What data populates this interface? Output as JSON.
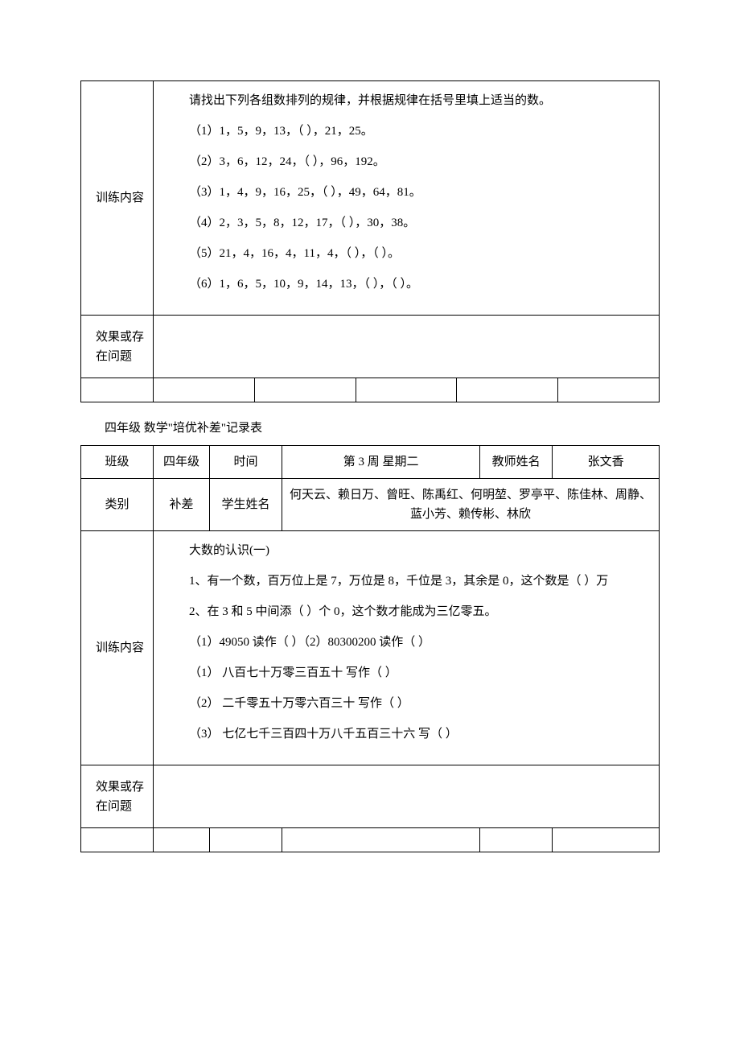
{
  "table1": {
    "row_label_training": "训练内容",
    "row_label_feedback": "效果或存在问题",
    "content_intro": "请找出下列各组数排列的规律，并根据规律在括号里填上适当的数。",
    "items": [
      "（1）1，5，9，13，（ ），21，25。",
      "（2）3，6，12，24，（ ），96，192。",
      "（3）1，4，9，16，25，（ ），49，64，81。",
      "（4）2，3，5，8，12，17，（ ），30，38。",
      "（5）21，4，16，4，11，4，（ ），（ ）。",
      "（6）1，6，5，10，9，14，13，（ ），（ ）。"
    ]
  },
  "between_title": "四年级 数学\"培优补差\"记录表",
  "table2": {
    "headers": {
      "class_label": "班级",
      "class_value": "四年级",
      "time_label": "时间",
      "time_value": "第 3 周 星期二",
      "teacher_label": "教师姓名",
      "teacher_value": "张文香",
      "category_label": "类别",
      "category_value": "补差",
      "student_label": "学生姓名",
      "student_value": "何天云、赖日万、曾旺、陈禹红、何明堃、罗亭平、陈佳林、周静、蓝小芳、赖传彬、林欣"
    },
    "row_label_training": "训练内容",
    "row_label_feedback": "效果或存在问题",
    "content_title": "大数的认识(一)",
    "items": [
      "1、有一个数，百万位上是 7，万位是 8，千位是 3，其余是 0，这个数是（ ）万",
      "2、在 3 和 5 中间添（ ）个 0，这个数才能成为三亿零五。",
      "（1）49050 读作（ ）（2）80300200 读作（ ）",
      "（1） 八百七十万零三百五十 写作（ ）",
      "（2） 二千零五十万零六百三十 写作（ ）",
      "（3） 七亿七千三百四十万八千五百三十六 写（ ）"
    ]
  }
}
